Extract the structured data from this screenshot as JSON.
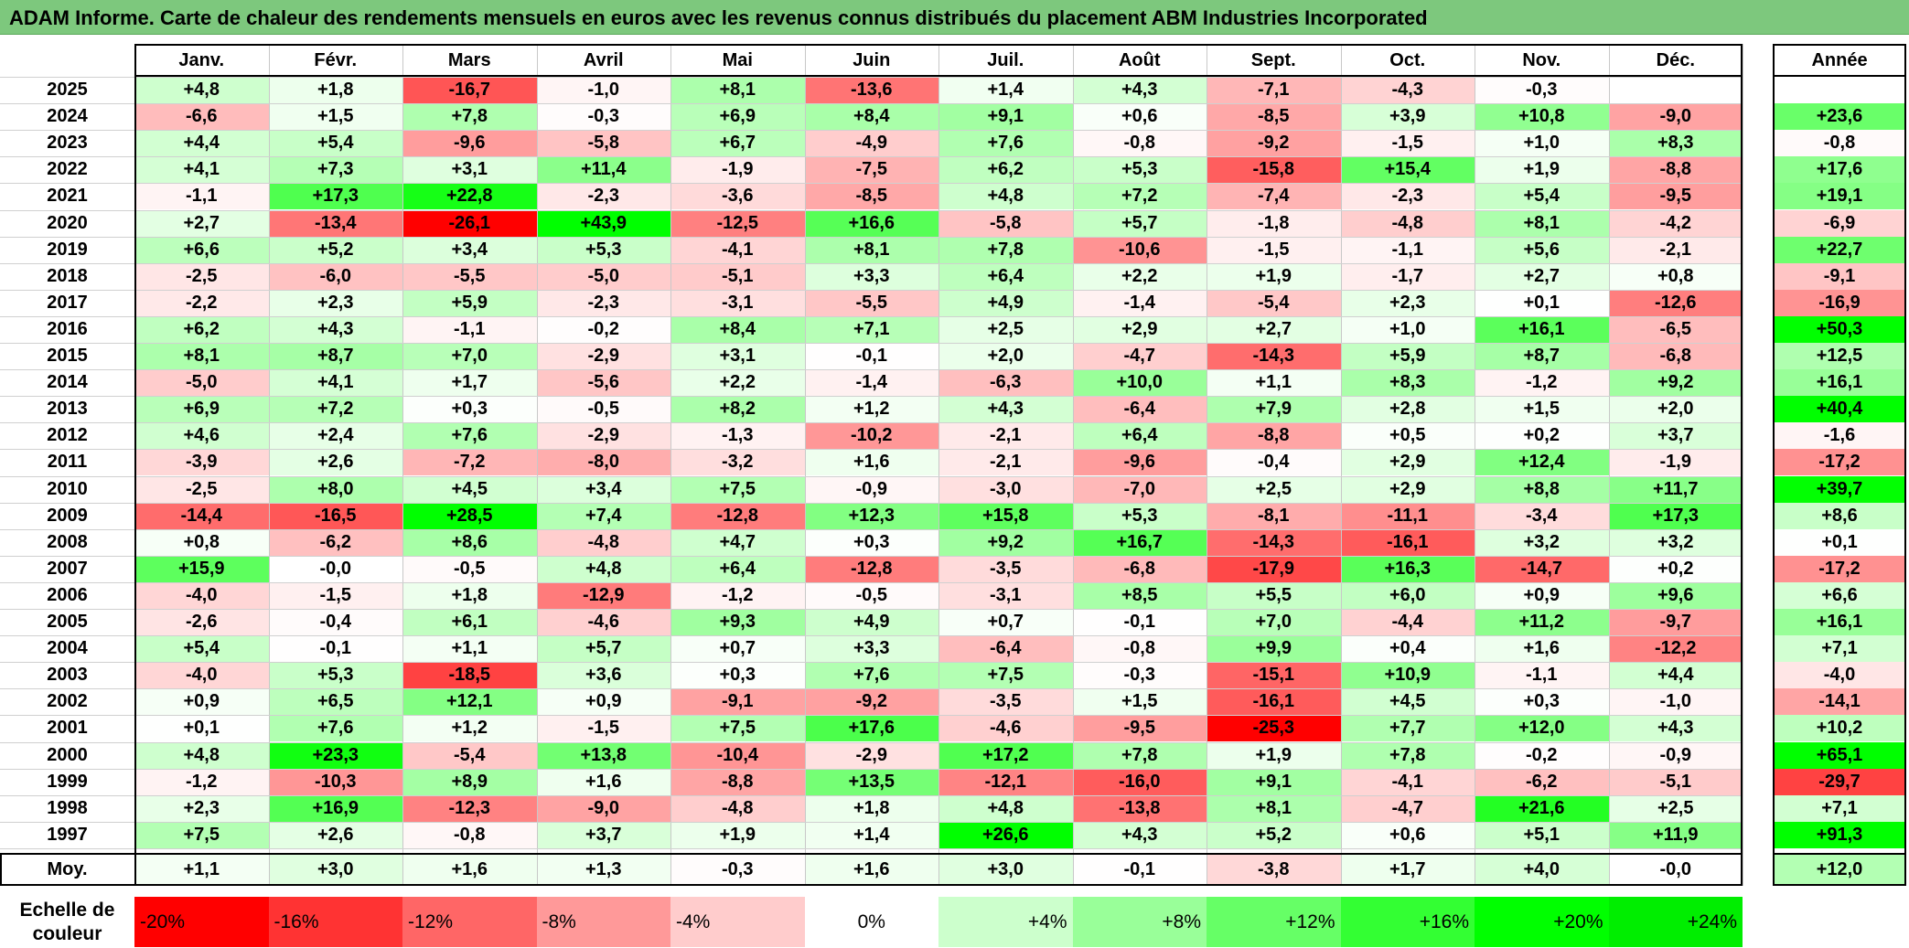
{
  "title": "ADAM Informe. Carte de chaleur des rendements mensuels en euros avec les revenus connus distribués du placement ABM Industries Incorporated",
  "chart_data": {
    "type": "heatmap",
    "title": "ADAM Informe. Carte de chaleur des rendements mensuels en euros avec les revenus connus distribués du placement ABM Industries Incorporated",
    "columns": [
      "Janv.",
      "Févr.",
      "Mars",
      "Avril",
      "Mai",
      "Juin",
      "Juil.",
      "Août",
      "Sept.",
      "Oct.",
      "Nov.",
      "Déc."
    ],
    "year_header": "Année",
    "rows": [
      {
        "label": "2025",
        "values": [
          "+4,8",
          "+1,8",
          "-16,7",
          "-1,0",
          "+8,1",
          "-13,6",
          "+1,4",
          "+4,3",
          "-7,1",
          "-4,3",
          "-0,3",
          ""
        ],
        "year": ""
      },
      {
        "label": "2024",
        "values": [
          "-6,6",
          "+1,5",
          "+7,8",
          "-0,3",
          "+6,9",
          "+8,4",
          "+9,1",
          "+0,6",
          "-8,5",
          "+3,9",
          "+10,8",
          "-9,0"
        ],
        "year": "+23,6"
      },
      {
        "label": "2023",
        "values": [
          "+4,4",
          "+5,4",
          "-9,6",
          "-5,8",
          "+6,7",
          "-4,9",
          "+7,6",
          "-0,8",
          "-9,2",
          "-1,5",
          "+1,0",
          "+8,3"
        ],
        "year": "-0,8"
      },
      {
        "label": "2022",
        "values": [
          "+4,1",
          "+7,3",
          "+3,1",
          "+11,4",
          "-1,9",
          "-7,5",
          "+6,2",
          "+5,3",
          "-15,8",
          "+15,4",
          "+1,9",
          "-8,8"
        ],
        "year": "+17,6"
      },
      {
        "label": "2021",
        "values": [
          "-1,1",
          "+17,3",
          "+22,8",
          "-2,3",
          "-3,6",
          "-8,5",
          "+4,8",
          "+7,2",
          "-7,4",
          "-2,3",
          "+5,4",
          "-9,5"
        ],
        "year": "+19,1"
      },
      {
        "label": "2020",
        "values": [
          "+2,7",
          "-13,4",
          "-26,1",
          "+43,9",
          "-12,5",
          "+16,6",
          "-5,8",
          "+5,7",
          "-1,8",
          "-4,8",
          "+8,1",
          "-4,2"
        ],
        "year": "-6,9"
      },
      {
        "label": "2019",
        "values": [
          "+6,6",
          "+5,2",
          "+3,4",
          "+5,3",
          "-4,1",
          "+8,1",
          "+7,8",
          "-10,6",
          "-1,5",
          "-1,1",
          "+5,6",
          "-2,1"
        ],
        "year": "+22,7"
      },
      {
        "label": "2018",
        "values": [
          "-2,5",
          "-6,0",
          "-5,5",
          "-5,0",
          "-5,1",
          "+3,3",
          "+6,4",
          "+2,2",
          "+1,9",
          "-1,7",
          "+2,7",
          "+0,8"
        ],
        "year": "-9,1"
      },
      {
        "label": "2017",
        "values": [
          "-2,2",
          "+2,3",
          "+5,9",
          "-2,3",
          "-3,1",
          "-5,5",
          "+4,9",
          "-1,4",
          "-5,4",
          "+2,3",
          "+0,1",
          "-12,6"
        ],
        "year": "-16,9"
      },
      {
        "label": "2016",
        "values": [
          "+6,2",
          "+4,3",
          "-1,1",
          "-0,2",
          "+8,4",
          "+7,1",
          "+2,5",
          "+2,9",
          "+2,7",
          "+1,0",
          "+16,1",
          "-6,5"
        ],
        "year": "+50,3"
      },
      {
        "label": "2015",
        "values": [
          "+8,1",
          "+8,7",
          "+7,0",
          "-2,9",
          "+3,1",
          "-0,1",
          "+2,0",
          "-4,7",
          "-14,3",
          "+5,9",
          "+8,7",
          "-6,8"
        ],
        "year": "+12,5"
      },
      {
        "label": "2014",
        "values": [
          "-5,0",
          "+4,1",
          "+1,7",
          "-5,6",
          "+2,2",
          "-1,4",
          "-6,3",
          "+10,0",
          "+1,1",
          "+8,3",
          "-1,2",
          "+9,2"
        ],
        "year": "+16,1"
      },
      {
        "label": "2013",
        "values": [
          "+6,9",
          "+7,2",
          "+0,3",
          "-0,5",
          "+8,2",
          "+1,2",
          "+4,3",
          "-6,4",
          "+7,9",
          "+2,8",
          "+1,5",
          "+2,0"
        ],
        "year": "+40,4"
      },
      {
        "label": "2012",
        "values": [
          "+4,6",
          "+2,4",
          "+7,6",
          "-2,9",
          "-1,3",
          "-10,2",
          "-2,1",
          "+6,4",
          "-8,8",
          "+0,5",
          "+0,2",
          "+3,7"
        ],
        "year": "-1,6"
      },
      {
        "label": "2011",
        "values": [
          "-3,9",
          "+2,6",
          "-7,2",
          "-8,0",
          "-3,2",
          "+1,6",
          "-2,1",
          "-9,6",
          "-0,4",
          "+2,9",
          "+12,4",
          "-1,9"
        ],
        "year": "-17,2"
      },
      {
        "label": "2010",
        "values": [
          "-2,5",
          "+8,0",
          "+4,5",
          "+3,4",
          "+7,5",
          "-0,9",
          "-3,0",
          "-7,0",
          "+2,5",
          "+2,9",
          "+8,8",
          "+11,7"
        ],
        "year": "+39,7"
      },
      {
        "label": "2009",
        "values": [
          "-14,4",
          "-16,5",
          "+28,5",
          "+7,4",
          "-12,8",
          "+12,3",
          "+15,8",
          "+5,3",
          "-8,1",
          "-11,1",
          "-3,4",
          "+17,3"
        ],
        "year": "+8,6"
      },
      {
        "label": "2008",
        "values": [
          "+0,8",
          "-6,2",
          "+8,6",
          "-4,8",
          "+4,7",
          "+0,3",
          "+9,2",
          "+16,7",
          "-14,3",
          "-16,1",
          "+3,2",
          "+3,2"
        ],
        "year": "+0,1"
      },
      {
        "label": "2007",
        "values": [
          "+15,9",
          "-0,0",
          "-0,5",
          "+4,8",
          "+6,4",
          "-12,8",
          "-3,5",
          "-6,8",
          "-17,9",
          "+16,3",
          "-14,7",
          "+0,2"
        ],
        "year": "-17,2"
      },
      {
        "label": "2006",
        "values": [
          "-4,0",
          "-1,5",
          "+1,8",
          "-12,9",
          "-1,2",
          "-0,5",
          "-3,1",
          "+8,5",
          "+5,5",
          "+6,0",
          "+0,9",
          "+9,6"
        ],
        "year": "+6,6"
      },
      {
        "label": "2005",
        "values": [
          "-2,6",
          "-0,4",
          "+6,1",
          "-4,6",
          "+9,3",
          "+4,9",
          "+0,7",
          "-0,1",
          "+7,0",
          "-4,4",
          "+11,2",
          "-9,7"
        ],
        "year": "+16,1"
      },
      {
        "label": "2004",
        "values": [
          "+5,4",
          "-0,1",
          "+1,1",
          "+5,7",
          "+0,7",
          "+3,3",
          "-6,4",
          "-0,8",
          "+9,9",
          "+0,4",
          "+1,6",
          "-12,2"
        ],
        "year": "+7,1"
      },
      {
        "label": "2003",
        "values": [
          "-4,0",
          "+5,3",
          "-18,5",
          "+3,6",
          "+0,3",
          "+7,6",
          "+7,5",
          "-0,3",
          "-15,1",
          "+10,9",
          "-1,1",
          "+4,4"
        ],
        "year": "-4,0"
      },
      {
        "label": "2002",
        "values": [
          "+0,9",
          "+6,5",
          "+12,1",
          "+0,9",
          "-9,1",
          "-9,2",
          "-3,5",
          "+1,5",
          "-16,1",
          "+4,5",
          "+0,3",
          "-1,0"
        ],
        "year": "-14,1"
      },
      {
        "label": "2001",
        "values": [
          "+0,1",
          "+7,6",
          "+1,2",
          "-1,5",
          "+7,5",
          "+17,6",
          "-4,6",
          "-9,5",
          "-25,3",
          "+7,7",
          "+12,0",
          "+4,3"
        ],
        "year": "+10,2"
      },
      {
        "label": "2000",
        "values": [
          "+4,8",
          "+23,3",
          "-5,4",
          "+13,8",
          "-10,4",
          "-2,9",
          "+17,2",
          "+7,8",
          "+1,9",
          "+7,8",
          "-0,2",
          "-0,9"
        ],
        "year": "+65,1"
      },
      {
        "label": "1999",
        "values": [
          "-1,2",
          "-10,3",
          "+8,9",
          "+1,6",
          "-8,8",
          "+13,5",
          "-12,1",
          "-16,0",
          "+9,1",
          "-4,1",
          "-6,2",
          "-5,1"
        ],
        "year": "-29,7"
      },
      {
        "label": "1998",
        "values": [
          "+2,3",
          "+16,9",
          "-12,3",
          "-9,0",
          "-4,8",
          "+1,8",
          "+4,8",
          "-13,8",
          "+8,1",
          "-4,7",
          "+21,6",
          "+2,5"
        ],
        "year": "+7,1"
      },
      {
        "label": "1997",
        "values": [
          "+7,5",
          "+2,6",
          "-0,8",
          "+3,7",
          "+1,9",
          "+1,4",
          "+26,6",
          "+4,3",
          "+5,2",
          "+0,6",
          "+5,1",
          "+11,9"
        ],
        "year": "+91,3"
      }
    ],
    "average": {
      "label": "Moy.",
      "values": [
        "+1,1",
        "+3,0",
        "+1,6",
        "+1,3",
        "-0,3",
        "+1,6",
        "+3,0",
        "-0,1",
        "-3,8",
        "+1,7",
        "+4,0",
        "-0,0"
      ],
      "year": "+12,0"
    },
    "scale": {
      "label_line1": "Echelle de",
      "label_line2": "couleur",
      "stops": [
        "-20%",
        "-16%",
        "-12%",
        "-8%",
        "-4%",
        "0%",
        "+4%",
        "+8%",
        "+12%",
        "+16%",
        "+20%",
        "+24%"
      ],
      "colors": [
        "#ff0000",
        "#ff3333",
        "#ff6666",
        "#ff9999",
        "#ffcccc",
        "#ffffff",
        "#ccffcc",
        "#99ff99",
        "#66ff66",
        "#33ff33",
        "#00ff00",
        "#00ee00"
      ]
    }
  }
}
